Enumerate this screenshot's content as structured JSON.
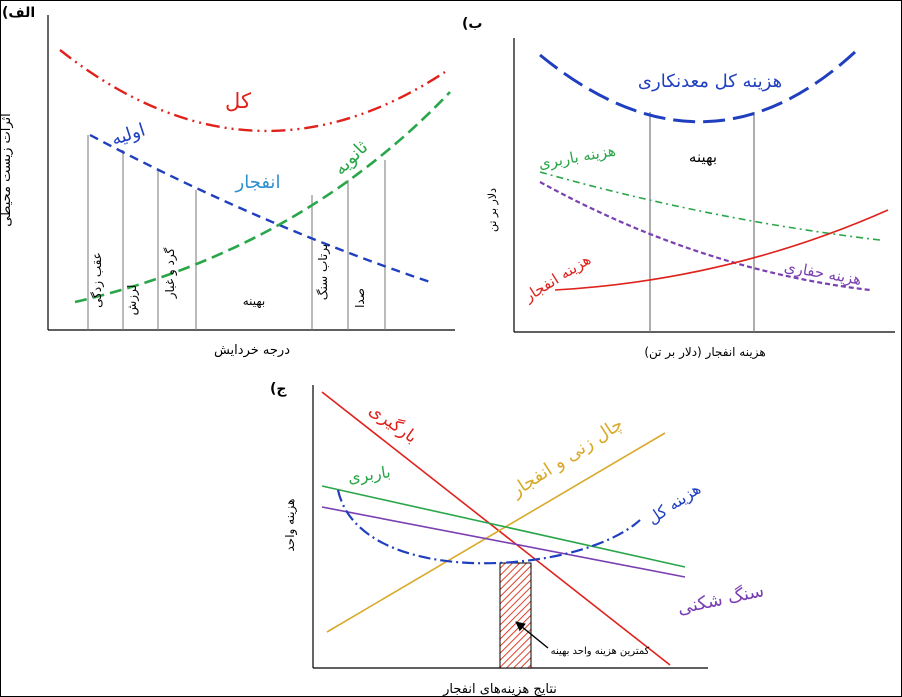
{
  "panel_a": {
    "tag": "(الف",
    "ylabel": "اثرات زیست محیطی",
    "xlabel": "درجه خردایش",
    "curve_total": "کل",
    "curve_primary": "اولیه",
    "curve_secondary": "ثانویه",
    "curve_blast": "انفجار",
    "zone_1": "عقب زدگی",
    "zone_2": "لرزش",
    "zone_3": "گرد و غبار",
    "zone_optimum": "بهینه",
    "zone_5": "پرتاب سنگ",
    "zone_6": "صدا"
  },
  "panel_b": {
    "tag": "(ب",
    "ylabel": "دلار بر تن",
    "xlabel": "هزینه انفجار (دلار بر تن)",
    "curve_total": "هزینه کل معدنکاری",
    "optimum": "بهینه",
    "curve_haul": "هزینه باربری",
    "curve_blast": "هزینه انفجار",
    "curve_dig": "هزینه حفاری"
  },
  "panel_c": {
    "tag": "(ج",
    "ylabel": "هزینه واحد",
    "xlabel": "نتایج هزینه‌های انفجار",
    "line_loading": "بارگیری",
    "line_drill_blast": "چال زنی و انفجار",
    "line_haul": "باربری",
    "curve_total": "هزینه کل",
    "line_crush": "سنگ شکنی",
    "min_note": "کمترین هزینه واحد بهینه"
  },
  "colors": {
    "red": "#e0221c",
    "blue": "#1f3fbf",
    "green": "#2aa64a",
    "cyan": "#2b8fd0",
    "purple": "#7a3fb0",
    "orange": "#d9a92a",
    "hatch": "#e0402a"
  }
}
